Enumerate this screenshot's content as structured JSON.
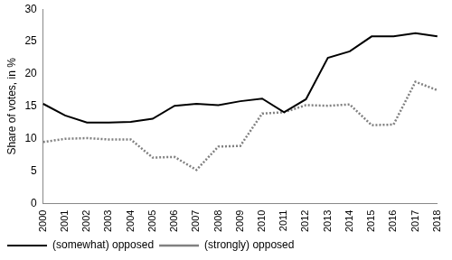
{
  "chart_data": {
    "type": "line",
    "y_label": "Share of votes, in %",
    "categories": [
      "2000",
      "2001",
      "2002",
      "2003",
      "2004",
      "2005",
      "2006",
      "2007",
      "2008",
      "2009",
      "2010",
      "2011",
      "2012",
      "2013",
      "2014",
      "2015",
      "2016",
      "2017",
      "2018"
    ],
    "series": [
      {
        "name": "(somewhat) opposed",
        "color": "#000000",
        "line_style": "solid",
        "values": [
          15.4,
          13.6,
          12.5,
          12.5,
          12.6,
          13.1,
          15.1,
          15.4,
          15.2,
          15.8,
          16.2,
          14.1,
          16.1,
          22.5,
          23.5,
          25.8,
          25.8,
          26.3,
          25.8
        ]
      },
      {
        "name": "(strongly) opposed",
        "color": "#808080",
        "line_style": "dotted",
        "values": [
          9.5,
          10.0,
          10.1,
          9.9,
          9.9,
          7.1,
          7.2,
          5.2,
          8.8,
          8.9,
          13.9,
          14.1,
          15.2,
          15.1,
          15.3,
          12.1,
          12.2,
          18.8,
          17.5
        ]
      }
    ],
    "ylim": [
      0,
      30
    ],
    "yticks": [
      0,
      5,
      10,
      15,
      20,
      25,
      30
    ],
    "grid": false,
    "legend": "bottom"
  }
}
